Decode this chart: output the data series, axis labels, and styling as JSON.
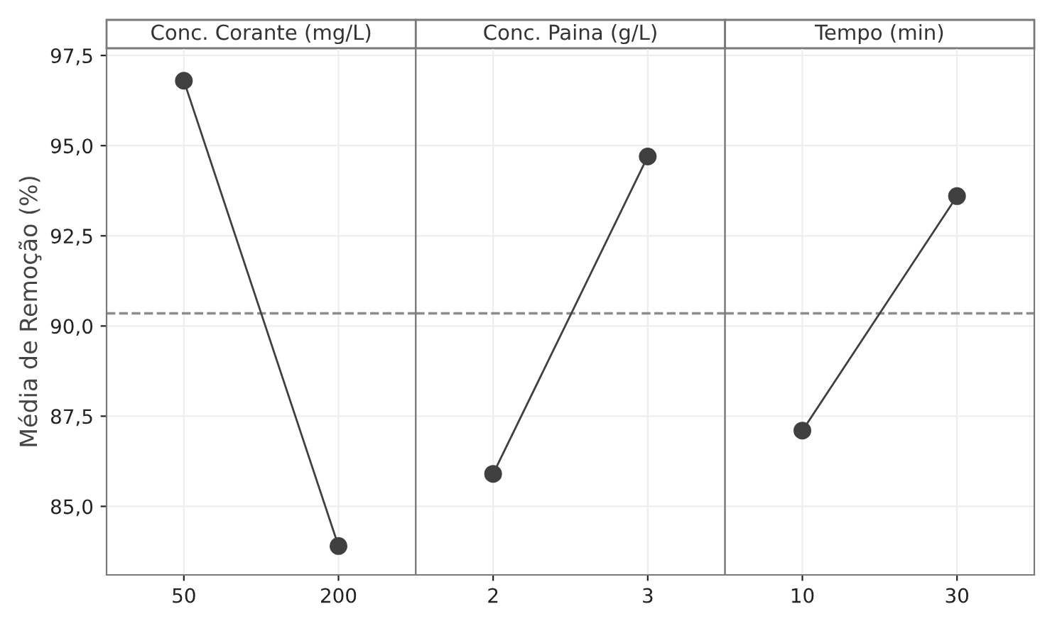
{
  "chart_data": [
    {
      "type": "line",
      "title": "Conc. Corante (mg/L)",
      "ylabel": "Média de Remoção (%)",
      "categories": [
        "50",
        "200"
      ],
      "series": [
        {
          "color": "#404040",
          "values": [
            96.8,
            83.9
          ]
        }
      ],
      "ylim": [
        83.1,
        97.7
      ],
      "yticks": [
        {
          "value": 85,
          "label": "85,0"
        },
        {
          "value": 87.5,
          "label": "87,5"
        },
        {
          "value": 90,
          "label": "90,0"
        },
        {
          "value": 92.5,
          "label": "92,5"
        },
        {
          "value": 95,
          "label": "95,0"
        },
        {
          "value": 97.5,
          "label": "97,5"
        }
      ],
      "ref_lines": [
        {
          "axis": "y",
          "value": 90.35,
          "color": "#8c8c8c",
          "line_style": "dashed"
        }
      ],
      "grid": true,
      "marker": "circle",
      "line_style": "solid"
    },
    {
      "type": "line",
      "title": "Conc. Paina (g/L)",
      "categories": [
        "2",
        "3"
      ],
      "series": [
        {
          "color": "#404040",
          "values": [
            85.9,
            94.7
          ]
        }
      ],
      "ylim": [
        83.1,
        97.7
      ],
      "yticks": [
        85,
        87.5,
        90,
        92.5,
        95,
        97.5
      ],
      "ref_lines": [
        {
          "axis": "y",
          "value": 90.35,
          "color": "#8c8c8c",
          "line_style": "dashed"
        }
      ],
      "grid": true,
      "marker": "circle",
      "line_style": "solid",
      "tick_labels": "x"
    },
    {
      "type": "line",
      "title": "Tempo (min)",
      "categories": [
        "10",
        "30"
      ],
      "series": [
        {
          "color": "#404040",
          "values": [
            87.1,
            93.6
          ]
        }
      ],
      "ylim": [
        83.1,
        97.7
      ],
      "yticks": [
        85,
        87.5,
        90,
        92.5,
        95,
        97.5
      ],
      "ref_lines": [
        {
          "axis": "y",
          "value": 90.35,
          "color": "#8c8c8c",
          "line_style": "dashed"
        }
      ],
      "grid": true,
      "marker": "circle",
      "line_style": "solid",
      "tick_labels": "x"
    }
  ]
}
